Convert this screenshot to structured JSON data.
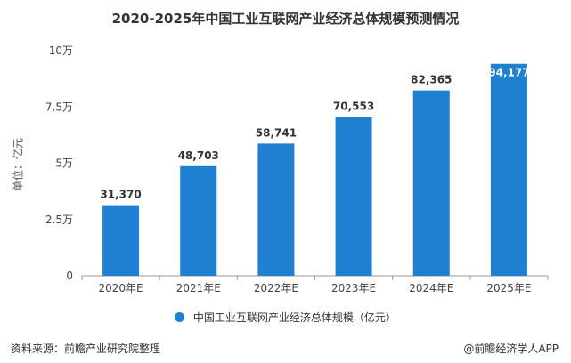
{
  "page_title": "2020-2025年中国工业互联网产业经济总体规模预测情况",
  "footer": {
    "source": "资料来源：前瞻产业研究院整理",
    "brand": "@前瞻经济学人APP"
  },
  "colors": {
    "bar": "#1f7fd0",
    "axis": "#999999",
    "text": "#333333"
  },
  "chart_data": {
    "type": "bar",
    "title": "2020-2025年中国工业互联网产业经济总体规模预测情况",
    "categories": [
      "2020年E",
      "2021年E",
      "2022年E",
      "2023年E",
      "2024年E",
      "2025年E"
    ],
    "series": [
      {
        "name": "中国工业互联网产业经济总体规模（亿元）",
        "values": [
          31370,
          48703,
          58741,
          70553,
          82365,
          94177
        ],
        "labels": [
          "31,370",
          "48,703",
          "58,741",
          "70,553",
          "82,365",
          "94,177"
        ]
      }
    ],
    "ylabel": "单位：亿元",
    "xlabel": "",
    "ylim": [
      0,
      100000
    ],
    "yticks": [
      0,
      25000,
      50000,
      75000,
      100000
    ],
    "ytick_labels": [
      "0",
      "2.5万",
      "5万",
      "7.5万",
      "10万"
    ],
    "grid": false,
    "legend_position": "bottom"
  }
}
